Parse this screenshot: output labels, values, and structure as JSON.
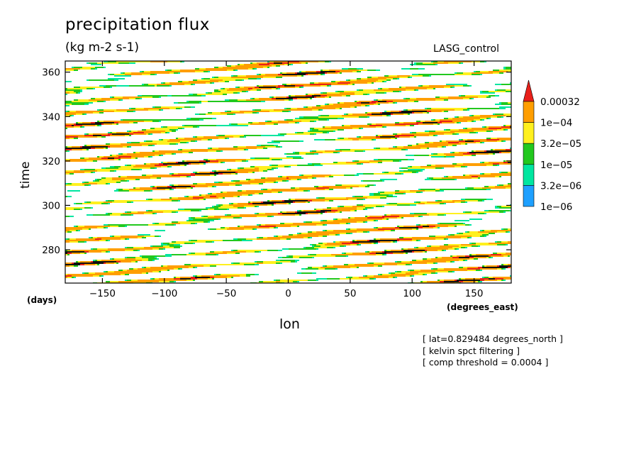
{
  "chart_data": {
    "type": "heatmap",
    "title": "precipitation flux",
    "subtitle": "(kg m-2 s-1)",
    "run_label": "LASG_control",
    "xlabel": "lon",
    "ylabel": "time",
    "x_unit": "(degrees_east)",
    "y_unit": "(days)",
    "xlim": [
      -180,
      180
    ],
    "ylim": [
      265,
      365
    ],
    "x_ticks": [
      -150,
      -100,
      -50,
      0,
      50,
      100,
      150
    ],
    "y_ticks": [
      280,
      300,
      320,
      340,
      360
    ],
    "legend": {
      "levels": [
        "0.00032",
        "1e-04",
        "3.2e-05",
        "1e-05",
        "3.2e-06",
        "1e-06"
      ],
      "colors": [
        "#e8201a",
        "#ff9e00",
        "#fff01e",
        "#22c81e",
        "#00e6a0",
        "#1ea0ff"
      ],
      "above_color": "#111111",
      "placement": "right"
    },
    "band_speed_deg_per_day": 24,
    "notes": [
      "[ lat=0.829484 degrees_north ]",
      "[ kelvin spct filtering ]",
      "[ comp threshold = 0.0004 ]"
    ]
  }
}
